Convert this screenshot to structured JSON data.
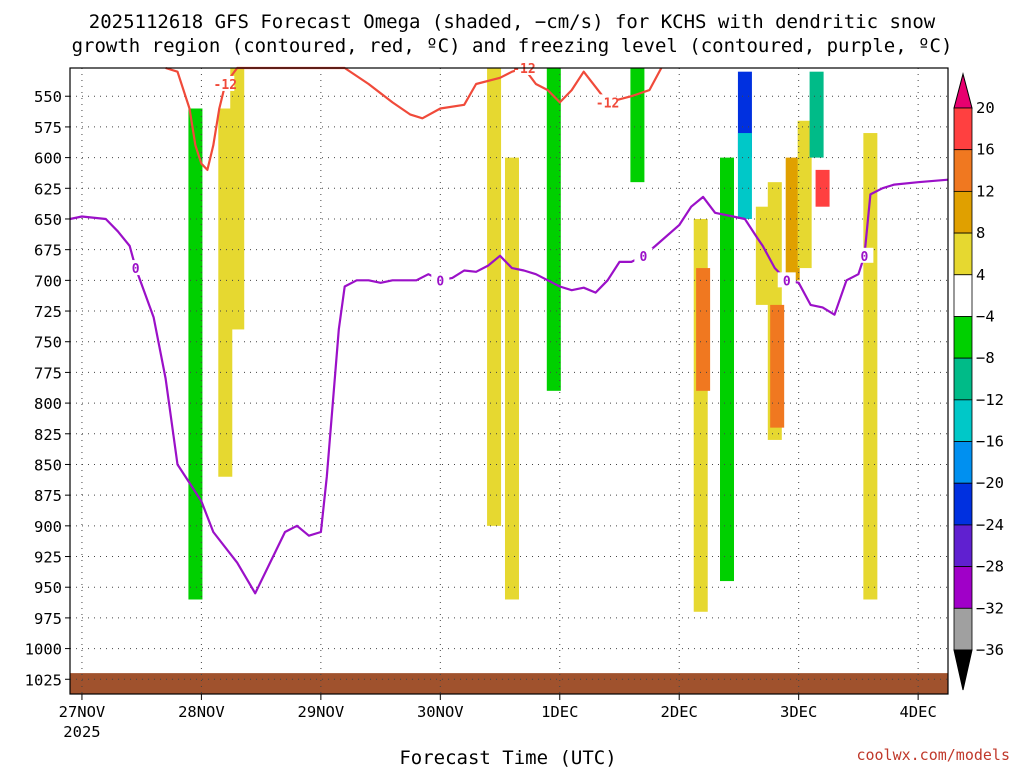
{
  "chart_data": {
    "type": "heatmap",
    "title_line1": "2025112618 GFS Forecast Omega (shaded, −cm/s) for KCHS with dendritic snow",
    "title_line2": "growth region (contoured, red, ºC) and freezing level (contoured, purple, ºC)",
    "xlabel": "Forecast Time (UTC)",
    "ylabel": "",
    "credit": "coolwx.com/models",
    "x_ticks": [
      {
        "day": 0,
        "label": "27NOV",
        "sublabel": "2025"
      },
      {
        "day": 1,
        "label": "28NOV",
        "sublabel": ""
      },
      {
        "day": 2,
        "label": "29NOV",
        "sublabel": ""
      },
      {
        "day": 3,
        "label": "30NOV",
        "sublabel": ""
      },
      {
        "day": 4,
        "label": "1DEC",
        "sublabel": ""
      },
      {
        "day": 5,
        "label": "2DEC",
        "sublabel": ""
      },
      {
        "day": 6,
        "label": "3DEC",
        "sublabel": ""
      },
      {
        "day": 7,
        "label": "4DEC",
        "sublabel": ""
      }
    ],
    "xlim_days": [
      -0.1,
      7.25
    ],
    "y_ticks_hpa": [
      "550",
      "575",
      "600",
      "625",
      "650",
      "675",
      "700",
      "725",
      "750",
      "775",
      "800",
      "825",
      "850",
      "875",
      "900",
      "925",
      "950",
      "975",
      "1000",
      "1025"
    ],
    "ylim_hpa": [
      527,
      1037
    ],
    "grid": true,
    "colorbar": {
      "labels": [
        "20",
        "16",
        "12",
        "8",
        "4",
        "−4",
        "−8",
        "−12",
        "−16",
        "−20",
        "−24",
        "−28",
        "−32",
        "−36"
      ],
      "bins": [
        {
          "range": "16 to 20",
          "color": "#ff4040"
        },
        {
          "range": "12 to 16",
          "color": "#f07820"
        },
        {
          "range": "8 to 12",
          "color": "#e0a000"
        },
        {
          "range": "4 to 8",
          "color": "#e6d830"
        },
        {
          "range": "-4 to 4",
          "color": "#ffffff"
        },
        {
          "range": "-8 to -4",
          "color": "#00d000"
        },
        {
          "range": "-12 to -8",
          "color": "#00bb88"
        },
        {
          "range": "-16 to -12",
          "color": "#00c8c8"
        },
        {
          "range": "-20 to -16",
          "color": "#0090f0"
        },
        {
          "range": "-24 to -20",
          "color": "#0030e0"
        },
        {
          "range": "-28 to -24",
          "color": "#6020d0"
        },
        {
          "range": "-32 to -28",
          "color": "#a000c8"
        },
        {
          "range": "-36 to -32",
          "color": "#a0a0a0"
        }
      ],
      "top_arrow_color": "#e8006f",
      "bottom_arrow_color": "#000000"
    },
    "omega_cells": [
      {
        "day": 0.95,
        "p": [
          560,
          960
        ],
        "v": -6
      },
      {
        "day": 1.2,
        "p": [
          560,
          860
        ],
        "v": 6
      },
      {
        "day": 1.3,
        "p": [
          527,
          740
        ],
        "v": 6
      },
      {
        "day": 3.45,
        "p": [
          527,
          900
        ],
        "v": 6
      },
      {
        "day": 3.6,
        "p": [
          600,
          960
        ],
        "v": 6
      },
      {
        "day": 3.95,
        "p": [
          527,
          790
        ],
        "v": -6
      },
      {
        "day": 4.65,
        "p": [
          527,
          620
        ],
        "v": -6
      },
      {
        "day": 5.18,
        "p": [
          650,
          970
        ],
        "v": 6
      },
      {
        "day": 5.2,
        "p": [
          690,
          790
        ],
        "v": 12
      },
      {
        "day": 5.4,
        "p": [
          600,
          945
        ],
        "v": -6
      },
      {
        "day": 5.55,
        "p": [
          530,
          600
        ],
        "v": -24
      },
      {
        "day": 5.55,
        "p": [
          580,
          650
        ],
        "v": -14
      },
      {
        "day": 5.7,
        "p": [
          640,
          720
        ],
        "v": 6
      },
      {
        "day": 5.8,
        "p": [
          620,
          830
        ],
        "v": 6
      },
      {
        "day": 5.82,
        "p": [
          720,
          820
        ],
        "v": 12
      },
      {
        "day": 5.95,
        "p": [
          600,
          700
        ],
        "v": 8
      },
      {
        "day": 6.05,
        "p": [
          570,
          690
        ],
        "v": 6
      },
      {
        "day": 6.15,
        "p": [
          530,
          600
        ],
        "v": -12
      },
      {
        "day": 6.2,
        "p": [
          610,
          640
        ],
        "v": 16
      },
      {
        "day": 6.6,
        "p": [
          580,
          960
        ],
        "v": 6
      },
      {
        "day": 7.2,
        "p": [
          1037,
          1037
        ],
        "v": 0
      }
    ],
    "series": [
      {
        "name": "-12 °C (dendritic snow growth region)",
        "color": "#f04a3a",
        "label": "-12",
        "days": [
          0.7,
          0.8,
          0.9,
          0.95,
          1.0,
          1.05,
          1.1,
          1.15,
          1.2,
          1.3,
          1.5,
          2.2,
          2.4,
          2.6,
          2.75,
          2.85,
          3.0,
          3.2,
          3.3,
          3.5,
          3.6,
          3.7,
          3.8,
          3.9,
          4.0,
          4.1,
          4.2,
          4.4,
          4.6,
          4.75,
          4.85
        ],
        "values": [
          527,
          530,
          560,
          590,
          605,
          610,
          590,
          560,
          540,
          527,
          527,
          527,
          540,
          555,
          565,
          568,
          560,
          557,
          540,
          535,
          530,
          527,
          540,
          545,
          555,
          545,
          530,
          555,
          550,
          545,
          527
        ]
      },
      {
        "name": "0 °C (freezing level)",
        "color": "#9b10c8",
        "label": "0",
        "days": [
          -0.1,
          0.0,
          0.2,
          0.3,
          0.4,
          0.45,
          0.6,
          0.7,
          0.8,
          0.9,
          1.0,
          1.1,
          1.3,
          1.45,
          1.6,
          1.7,
          1.8,
          1.9,
          2.0,
          2.05,
          2.1,
          2.15,
          2.2,
          2.3,
          2.4,
          2.5,
          2.6,
          2.7,
          2.8,
          2.9,
          3.0,
          3.1,
          3.2,
          3.3,
          3.4,
          3.5,
          3.6,
          3.7,
          3.8,
          3.9,
          4.0,
          4.1,
          4.2,
          4.3,
          4.4,
          4.5,
          4.6,
          4.7,
          4.8,
          5.0,
          5.1,
          5.2,
          5.3,
          5.45,
          5.55,
          5.65,
          5.7,
          5.8,
          5.9,
          6.0,
          6.1,
          6.2,
          6.3,
          6.4,
          6.5,
          6.55,
          6.6,
          6.7,
          6.8,
          7.0,
          7.25
        ],
        "values": [
          650,
          648,
          650,
          660,
          672,
          690,
          730,
          780,
          850,
          865,
          880,
          905,
          930,
          955,
          925,
          905,
          900,
          908,
          905,
          860,
          800,
          740,
          705,
          700,
          700,
          702,
          700,
          700,
          700,
          695,
          700,
          698,
          692,
          693,
          688,
          680,
          690,
          692,
          695,
          700,
          705,
          708,
          706,
          710,
          700,
          685,
          685,
          680,
          672,
          655,
          640,
          632,
          645,
          648,
          650,
          665,
          672,
          690,
          700,
          702,
          720,
          722,
          728,
          700,
          695,
          680,
          630,
          625,
          622,
          620,
          618
        ]
      }
    ],
    "ground_color": "#a0522d"
  }
}
